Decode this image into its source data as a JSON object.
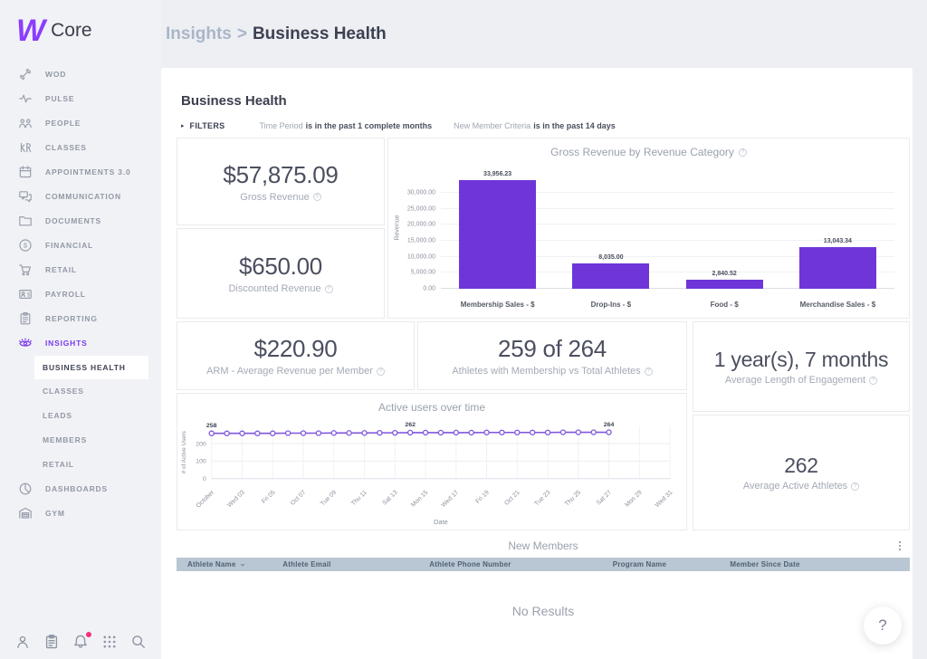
{
  "app": {
    "logo_mark": "W",
    "logo_text": "Core",
    "accent_color": "#7c3aed"
  },
  "breadcrumb": {
    "parent": "Insights",
    "separator": ">",
    "current": "Business Health"
  },
  "sidebar": {
    "items_top": [
      {
        "label": "WOD",
        "icon": "dumbbell-icon"
      },
      {
        "label": "PULSE",
        "icon": "pulse-icon"
      },
      {
        "label": "PEOPLE",
        "icon": "people-icon"
      },
      {
        "label": "CLASSES",
        "icon": "figures-icon"
      },
      {
        "label": "APPOINTMENTS 3.0",
        "icon": "calendar-icon"
      },
      {
        "label": "COMMUNICATION",
        "icon": "chat-icon"
      },
      {
        "label": "DOCUMENTS",
        "icon": "folder-icon"
      },
      {
        "label": "FINANCIAL",
        "icon": "dollar-circle-icon"
      },
      {
        "label": "RETAIL",
        "icon": "cart-icon"
      },
      {
        "label": "PAYROLL",
        "icon": "payroll-icon"
      },
      {
        "label": "REPORTING",
        "icon": "clipboard-icon"
      },
      {
        "label": "INSIGHTS",
        "icon": "eye-icon",
        "active": true
      }
    ],
    "insights_subitems": [
      {
        "label": "BUSINESS HEALTH",
        "selected": true
      },
      {
        "label": "CLASSES"
      },
      {
        "label": "LEADS"
      },
      {
        "label": "MEMBERS"
      },
      {
        "label": "RETAIL"
      }
    ],
    "items_bottom": [
      {
        "label": "DASHBOARDS",
        "icon": "pie-chart-icon"
      },
      {
        "label": "GYM",
        "icon": "gym-icon"
      }
    ],
    "footer_icons": [
      {
        "icon": "person-icon"
      },
      {
        "icon": "clipboard-icon"
      },
      {
        "icon": "bell-icon",
        "notification": true
      },
      {
        "icon": "grid-icon"
      },
      {
        "icon": "search-icon"
      }
    ],
    "notification_color": "#f5317f"
  },
  "page": {
    "title": "Business Health"
  },
  "filters": {
    "label": "FILTERS",
    "criteria": [
      {
        "field": "Time Period",
        "condition": "is in the past 1 complete months"
      },
      {
        "field": "New Member Criteria",
        "condition": "is in the past 14 days"
      }
    ]
  },
  "kpis": [
    {
      "value": "$57,875.09",
      "label": "Gross Revenue"
    },
    {
      "value": "$650.00",
      "label": "Discounted Revenue"
    },
    {
      "value": "$220.90",
      "label": "ARM - Average Revenue per Member"
    },
    {
      "value": "259 of 264",
      "label": "Athletes with Membership vs Total Athletes"
    },
    {
      "value": "1 year(s), 7 months",
      "label": "Average Length of Engagement"
    },
    {
      "value": "262",
      "label": "Average Active Athletes"
    }
  ],
  "chart_data": [
    {
      "type": "bar",
      "title": "Gross Revenue by Revenue Category",
      "categories": [
        "Membership Sales - $",
        "Drop-Ins - $",
        "Food - $",
        "Merchandise Sales - $"
      ],
      "values": [
        33956.23,
        8035.0,
        2840.52,
        13043.34
      ],
      "value_labels": [
        "33,956.23",
        "8,035.00",
        "2,840.52",
        "13,043.34"
      ],
      "xlabel": "",
      "ylabel": "Revenue",
      "yticks": [
        0,
        5000,
        10000,
        15000,
        20000,
        25000,
        30000
      ],
      "ytick_labels": [
        "0.00",
        "5,000.00",
        "10,000.00",
        "15,000.00",
        "20,000.00",
        "25,000.00",
        "30,000.00"
      ],
      "ylim": [
        0,
        34000
      ],
      "grid": true,
      "legend": false,
      "bar_color": "#6f35d8"
    },
    {
      "type": "line",
      "title": "Active users over time",
      "xlabel": "Date",
      "ylabel": "# of Active Users",
      "x_tick_labels": [
        "October",
        "Wed 03",
        "Fri 05",
        "Oct 07",
        "Tue 09",
        "Thu 11",
        "Sat 13",
        "Mon 15",
        "Wed 17",
        "Fri 19",
        "Oct 21",
        "Tue 23",
        "Thu 25",
        "Sat 27",
        "Mon 29",
        "Wed 31"
      ],
      "values": [
        258,
        258,
        258,
        258,
        258,
        259,
        259,
        259,
        260,
        260,
        260,
        261,
        261,
        262,
        262,
        262,
        262,
        262,
        263,
        263,
        263,
        263,
        263,
        264,
        264,
        264,
        264
      ],
      "yticks": [
        0,
        100,
        200
      ],
      "ylim": [
        0,
        300
      ],
      "grid": true,
      "legend": false,
      "annotations": [
        {
          "day": 1,
          "label": "258"
        },
        {
          "day": 14,
          "label": "262"
        },
        {
          "day": 27,
          "label": "264"
        }
      ],
      "line_color": "#7e57dc",
      "marker": "open-circle"
    }
  ],
  "table": {
    "title": "New Members",
    "columns": [
      {
        "label": "Athlete Name",
        "sorted": true
      },
      {
        "label": "Athlete Email"
      },
      {
        "label": "Athlete Phone Number"
      },
      {
        "label": "Program Name"
      },
      {
        "label": "Member Since Date"
      }
    ],
    "rows": [],
    "empty_text": "No Results",
    "header_bg": "#b9c6d3"
  },
  "help": {
    "label": "?"
  }
}
